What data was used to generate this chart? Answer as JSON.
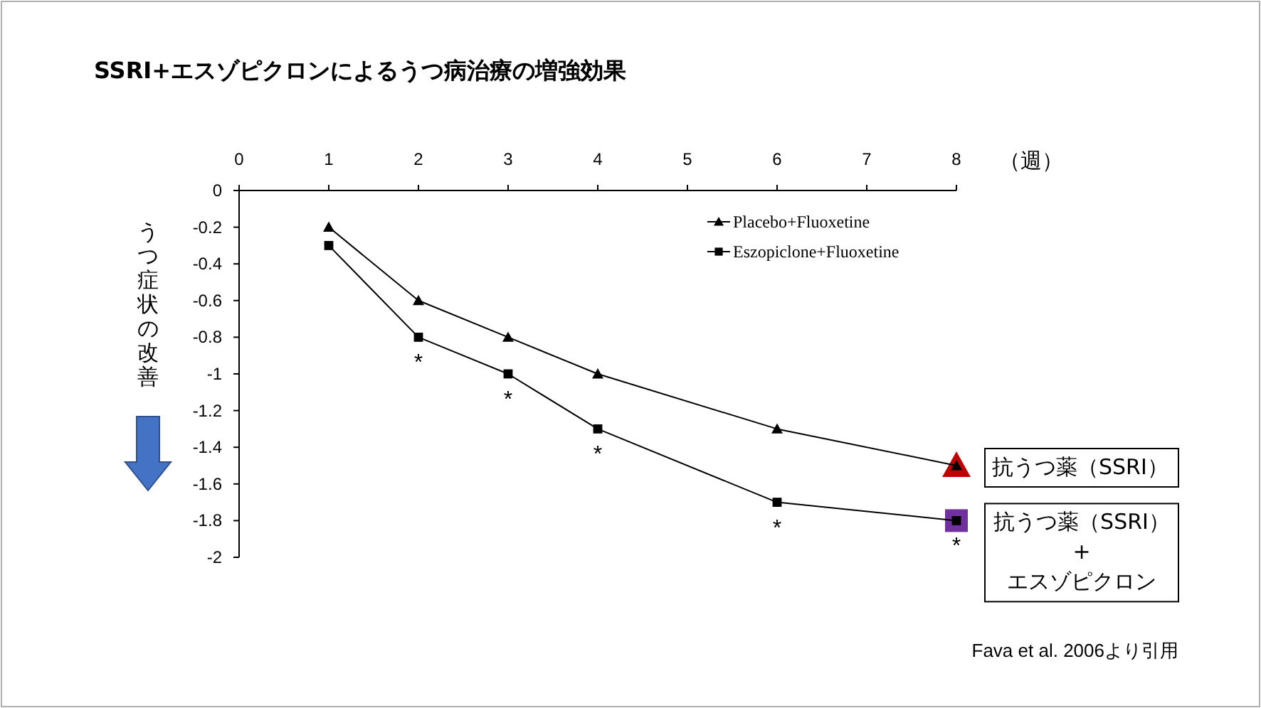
{
  "chart_data": {
    "type": "line",
    "title": "SSRI+エスゾピクロンによるうつ病治療の増強効果",
    "xlabel": "（週）",
    "ylabel": "うつ症状の改善",
    "x": [
      1,
      2,
      3,
      4,
      6,
      8
    ],
    "xlim": [
      0,
      8
    ],
    "xticks": [
      0,
      1,
      2,
      3,
      4,
      5,
      6,
      7,
      8
    ],
    "ylim": [
      -2,
      0
    ],
    "yticks": [
      0,
      -0.2,
      -0.4,
      -0.6,
      -0.8,
      -1,
      -1.2,
      -1.4,
      -1.6,
      -1.8,
      -2
    ],
    "grid": false,
    "legend": "top right",
    "line_style": "solid",
    "series": [
      {
        "name": "Placebo+Fluoxetine",
        "color": "#000000",
        "marker": "triangle",
        "values": [
          -0.2,
          -0.6,
          -0.8,
          -1.0,
          -1.3,
          -1.5
        ]
      },
      {
        "name": "Eszopiclone+Fluoxetine",
        "color": "#000000",
        "marker": "square",
        "values": [
          -0.3,
          -0.8,
          -1.0,
          -1.3,
          -1.7,
          -1.8
        ]
      }
    ],
    "annotations": [
      {
        "text": "*",
        "x": 2,
        "y": -0.8
      },
      {
        "text": "*",
        "x": 3,
        "y": -1.0
      },
      {
        "text": "*",
        "x": 4,
        "y": -1.3
      },
      {
        "text": "*",
        "x": 6,
        "y": -1.7
      },
      {
        "text": "*",
        "x": 8,
        "y": -1.8
      },
      {
        "text": "抗うつ薬（SSRI）",
        "x": 8,
        "y": -1.5
      },
      {
        "text": "抗うつ薬（SSRI）\n+\nエスゾピクロン",
        "x": 8,
        "y": -1.8
      },
      "Fava et al. 2006より引用"
    ]
  }
}
